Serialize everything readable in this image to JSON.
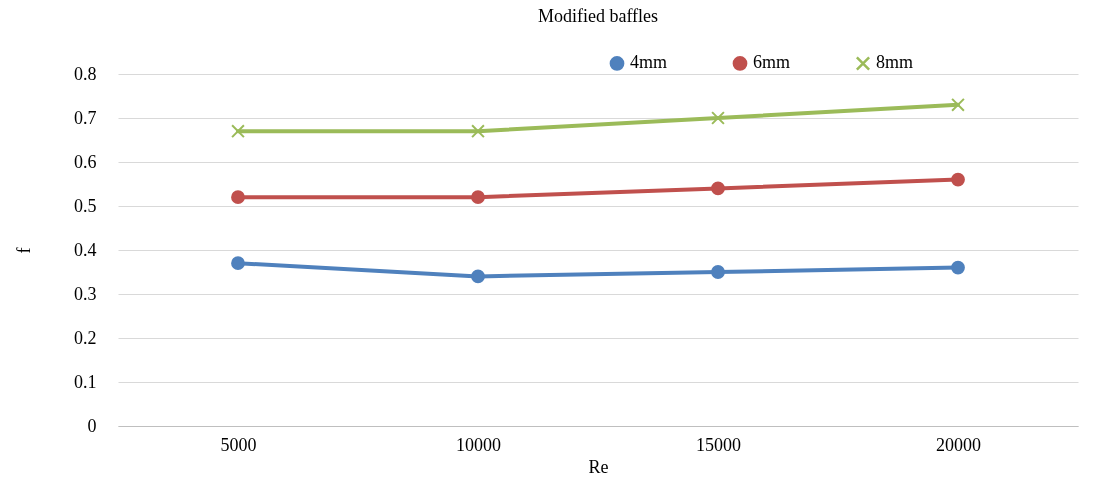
{
  "chart_data": {
    "type": "line",
    "title": "Modified baffles",
    "xlabel": "Re",
    "ylabel": "f",
    "categories": [
      "5000",
      "10000",
      "15000",
      "20000"
    ],
    "series": [
      {
        "name": "4mm",
        "color": "#4f81bd",
        "marker": "circle",
        "values": [
          0.37,
          0.34,
          0.35,
          0.36
        ]
      },
      {
        "name": "6mm",
        "color": "#c0504d",
        "marker": "circle",
        "values": [
          0.52,
          0.52,
          0.54,
          0.56
        ]
      },
      {
        "name": "8mm",
        "color": "#9bbb59",
        "marker": "cross",
        "values": [
          0.67,
          0.67,
          0.7,
          0.73
        ]
      }
    ],
    "ylim": [
      0,
      0.8
    ],
    "yticks": [
      0,
      0.1,
      0.2,
      0.3,
      0.4,
      0.5,
      0.6,
      0.7,
      0.8
    ],
    "grid": "y",
    "legend": "top right"
  }
}
